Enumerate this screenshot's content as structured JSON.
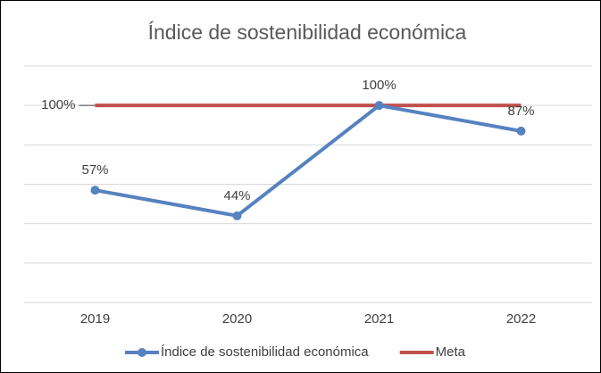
{
  "chart_data": {
    "type": "line",
    "title": "Índice de sostenibilidad económica",
    "categories": [
      "2019",
      "2020",
      "2021",
      "2022"
    ],
    "series": [
      {
        "name": "Índice de sostenibilidad económica",
        "color": "#5682c0",
        "values": [
          57,
          44,
          100,
          87
        ],
        "value_labels": [
          "57%",
          "44%",
          "100%",
          "87%"
        ]
      },
      {
        "name": "Meta",
        "color": "#c0504d",
        "values": [
          100,
          100,
          100,
          100
        ],
        "value_labels": [
          "100%",
          null,
          null,
          null
        ]
      }
    ],
    "ylim": [
      0,
      120
    ],
    "yticks": [
      0,
      20,
      40,
      60,
      80,
      100,
      120
    ],
    "grid": true,
    "legend": "bottom"
  }
}
